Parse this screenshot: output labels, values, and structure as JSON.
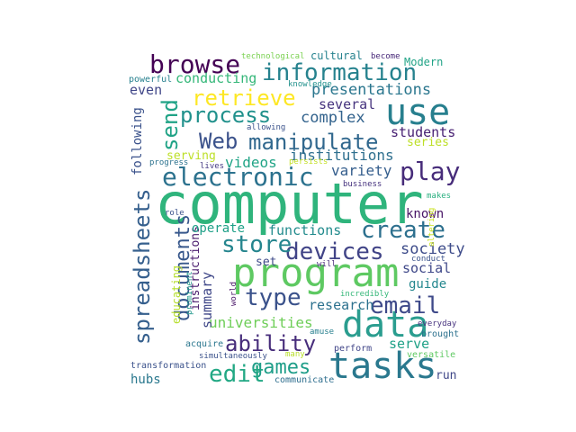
{
  "cloud": {
    "words": [
      {
        "text": "computer",
        "color": "#2fb47c"
      },
      {
        "text": "program",
        "color": "#5ec962"
      },
      {
        "text": "tasks",
        "color": "#2a788e"
      },
      {
        "text": "data",
        "color": "#2a9d8f"
      },
      {
        "text": "use",
        "color": "#277f8e"
      },
      {
        "text": "information",
        "color": "#26828e"
      },
      {
        "text": "manipulate",
        "color": "#31688e"
      },
      {
        "text": "retrieve",
        "color": "#fde725"
      },
      {
        "text": "browse",
        "color": "#440154"
      },
      {
        "text": "process",
        "color": "#21918c"
      },
      {
        "text": "Web",
        "color": "#3b528b"
      },
      {
        "text": "electronic",
        "color": "#2c728e"
      },
      {
        "text": "play",
        "color": "#472c7a"
      },
      {
        "text": "send",
        "color": "#20a386"
      },
      {
        "text": "spreadsheets",
        "color": "#355f8d"
      },
      {
        "text": "documents",
        "color": "#38588c"
      },
      {
        "text": "ability",
        "color": "#472d7b"
      },
      {
        "text": "email",
        "color": "#3e4989"
      },
      {
        "text": "devices",
        "color": "#414487"
      },
      {
        "text": "store",
        "color": "#25858e"
      },
      {
        "text": "create",
        "color": "#2d708e"
      },
      {
        "text": "type",
        "color": "#3b528b"
      },
      {
        "text": "games",
        "color": "#1f9e89"
      },
      {
        "text": "edit",
        "color": "#22a884"
      },
      {
        "text": "universities",
        "color": "#6ece58"
      },
      {
        "text": "presentations",
        "color": "#2a768e"
      },
      {
        "text": "videos",
        "color": "#20a486"
      },
      {
        "text": "complex",
        "color": "#33638d"
      },
      {
        "text": "institutions",
        "color": "#2e6f8e"
      },
      {
        "text": "functions",
        "color": "#228b8d"
      },
      {
        "text": "society",
        "color": "#3e4c8a"
      },
      {
        "text": "variety",
        "color": "#355e8d"
      },
      {
        "text": "conducting",
        "color": "#35b779"
      },
      {
        "text": "even",
        "color": "#404688"
      },
      {
        "text": "several",
        "color": "#46337e"
      },
      {
        "text": "students",
        "color": "#482173"
      },
      {
        "text": "summary",
        "color": "#3f4788"
      },
      {
        "text": "instructions",
        "color": "#481a6c"
      },
      {
        "text": "operate",
        "color": "#1fa088"
      },
      {
        "text": "research",
        "color": "#2c718e"
      },
      {
        "text": "serve",
        "color": "#1fa187"
      },
      {
        "text": "social",
        "color": "#3f4889"
      },
      {
        "text": "guide",
        "color": "#24878e"
      },
      {
        "text": "known",
        "color": "#471365"
      },
      {
        "text": "series",
        "color": "#bddf26"
      },
      {
        "text": "serving",
        "color": "#bddf26"
      },
      {
        "text": "following",
        "color": "#3b528b"
      },
      {
        "text": "educating",
        "color": "#b5de2b"
      },
      {
        "text": "set",
        "color": "#3e4a89"
      },
      {
        "text": "cultural",
        "color": "#26828e"
      },
      {
        "text": "Modern",
        "color": "#20a386"
      },
      {
        "text": "hubs",
        "color": "#2a788e"
      },
      {
        "text": "run",
        "color": "#3f4788"
      },
      {
        "text": "technological",
        "color": "#7ad151"
      },
      {
        "text": "become",
        "color": "#472878"
      },
      {
        "text": "powerful",
        "color": "#27808e"
      },
      {
        "text": "knowledge",
        "color": "#21918c"
      },
      {
        "text": "allowing",
        "color": "#3b528b"
      },
      {
        "text": "progress",
        "color": "#2c728e"
      },
      {
        "text": "lives",
        "color": "#443983"
      },
      {
        "text": "persists",
        "color": "#c2df23"
      },
      {
        "text": "business",
        "color": "#46327e"
      },
      {
        "text": "makes",
        "color": "#29af7f"
      },
      {
        "text": "role",
        "color": "#3b528b"
      },
      {
        "text": "altering",
        "color": "#cae11f"
      },
      {
        "text": "will",
        "color": "#472a7a"
      },
      {
        "text": "conduct",
        "color": "#3b528b"
      },
      {
        "text": "world",
        "color": "#481467"
      },
      {
        "text": "prominent",
        "color": "#1f988b"
      },
      {
        "text": "amuse",
        "color": "#277f8e"
      },
      {
        "text": "incredibly",
        "color": "#35b779"
      },
      {
        "text": "acquire",
        "color": "#2a768e"
      },
      {
        "text": "everyday",
        "color": "#46327e"
      },
      {
        "text": "brought",
        "color": "#2c718e"
      },
      {
        "text": "many",
        "color": "#b8de29"
      },
      {
        "text": "simultaneously",
        "color": "#3b528b"
      },
      {
        "text": "perform",
        "color": "#404588"
      },
      {
        "text": "versatile",
        "color": "#5ec962"
      },
      {
        "text": "transformation",
        "color": "#3b528b"
      },
      {
        "text": "communicate",
        "color": "#2e6e8e"
      }
    ]
  }
}
